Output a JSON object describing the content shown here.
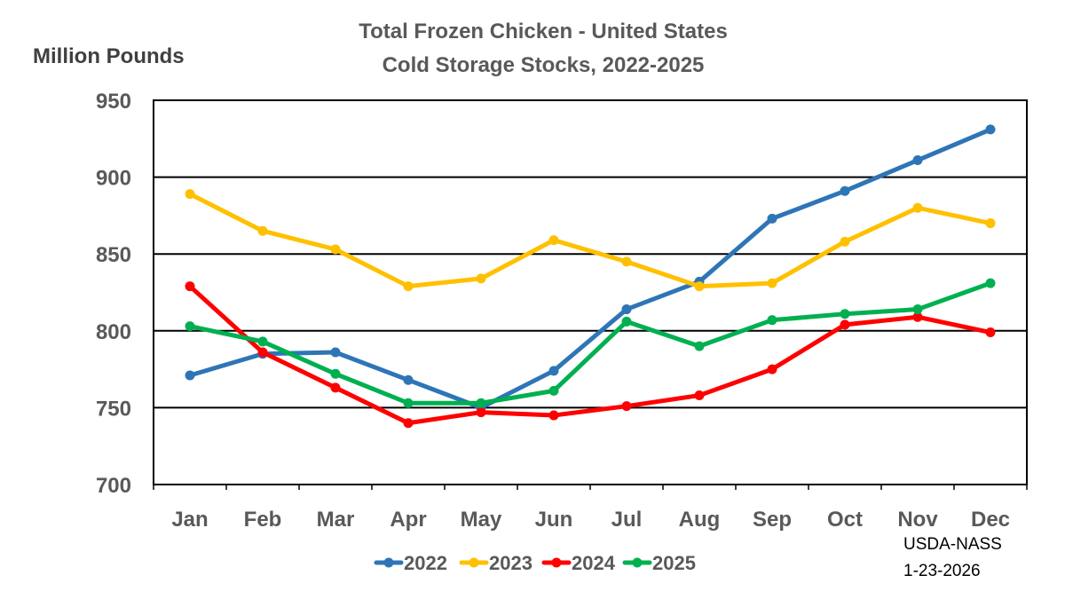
{
  "chart_data": {
    "type": "line",
    "title": "Total Frozen Chicken - United States",
    "subtitle": "Cold Storage Stocks, 2022-2025",
    "ylabel": "Million Pounds",
    "xlabel": "",
    "categories": [
      "Jan",
      "Feb",
      "Mar",
      "Apr",
      "May",
      "Jun",
      "Jul",
      "Aug",
      "Sep",
      "Oct",
      "Nov",
      "Dec"
    ],
    "ylim": [
      700,
      950
    ],
    "yticks": [
      "700",
      "750",
      "800",
      "850",
      "900",
      "950"
    ],
    "grid": "horizontal",
    "legend": "bottom",
    "series": [
      {
        "name": "2022",
        "color": "#2E75B6",
        "values": [
          771,
          785,
          786,
          768,
          750,
          774,
          814,
          832,
          873,
          891,
          911,
          931
        ]
      },
      {
        "name": "2023",
        "color": "#FFC000",
        "values": [
          889,
          865,
          853,
          829,
          834,
          859,
          845,
          829,
          831,
          858,
          880,
          870
        ]
      },
      {
        "name": "2024",
        "color": "#FF0000",
        "values": [
          829,
          786,
          763,
          740,
          747,
          745,
          751,
          758,
          775,
          804,
          809,
          799
        ]
      },
      {
        "name": "2025",
        "color": "#00B050",
        "values": [
          803,
          793,
          772,
          753,
          753,
          761,
          806,
          790,
          807,
          811,
          814,
          831
        ]
      }
    ]
  },
  "source": {
    "line1": "USDA-NASS",
    "line2": "1-23-2026"
  }
}
